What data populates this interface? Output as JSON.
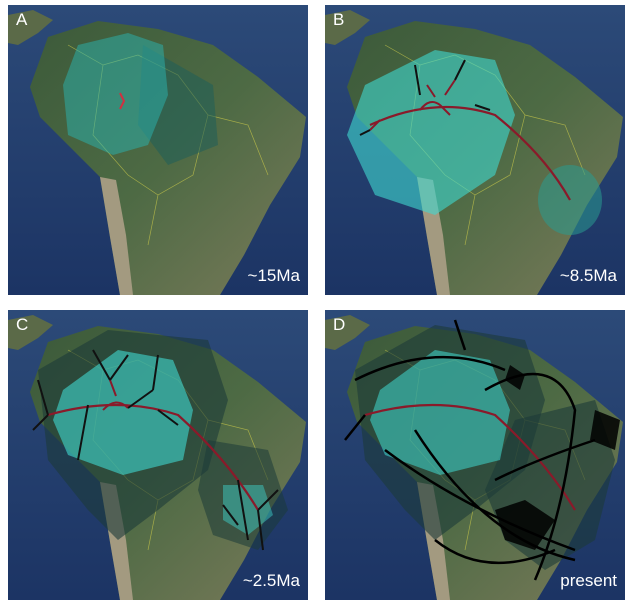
{
  "panels": [
    {
      "label": "A",
      "age": "~15Ma"
    },
    {
      "label": "B",
      "age": "~8.5Ma"
    },
    {
      "label": "C",
      "age": "~2.5Ma"
    },
    {
      "label": "D",
      "age": "present"
    }
  ]
}
